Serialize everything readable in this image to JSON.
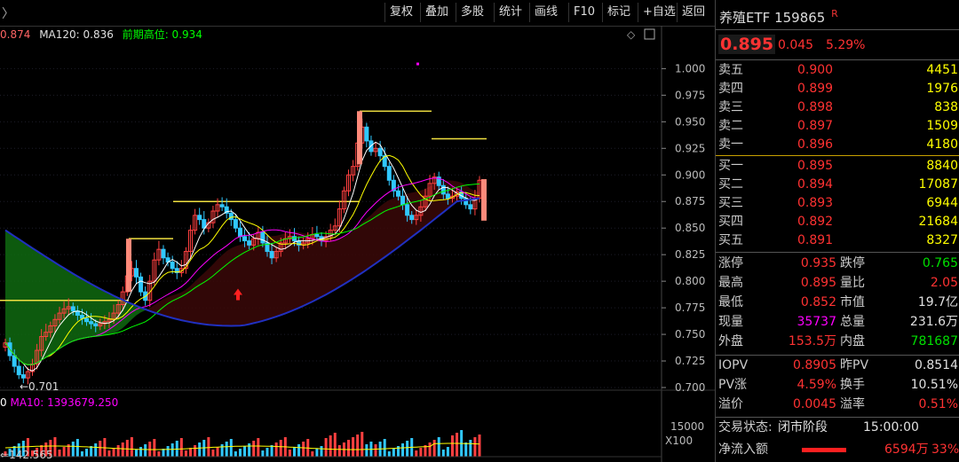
{
  "toolbar": {
    "back_arrow": "〉",
    "buttons": [
      "复权",
      "叠加",
      "多股",
      "统计",
      "画线",
      "F10",
      "标记",
      "+自选",
      "返回"
    ]
  },
  "legend": {
    "items": [
      {
        "text": "0.874",
        "color": "#ff6464"
      },
      {
        "text": "MA120: 0.836",
        "color": "#e0e0e0"
      },
      {
        "text": "前期高位: 0.934",
        "color": "#00ff00"
      }
    ]
  },
  "chart_data": {
    "type": "candlestick",
    "y_ticks": [
      "1.000",
      "0.975",
      "0.950",
      "0.925",
      "0.900",
      "0.875",
      "0.850",
      "0.825",
      "0.800",
      "0.775",
      "0.750",
      "0.725",
      "0.700"
    ],
    "ylim": [
      0.69,
      1.012
    ],
    "annotations": {
      "low_label": "0.701"
    },
    "volume_ticks": [
      "15000",
      "X100"
    ],
    "closes": [
      0.742,
      0.73,
      0.72,
      0.712,
      0.709,
      0.715,
      0.722,
      0.735,
      0.748,
      0.752,
      0.758,
      0.764,
      0.77,
      0.774,
      0.776,
      0.772,
      0.768,
      0.765,
      0.762,
      0.76,
      0.758,
      0.76,
      0.762,
      0.764,
      0.77,
      0.778,
      0.79,
      0.805,
      0.812,
      0.804,
      0.79,
      0.782,
      0.8,
      0.82,
      0.83,
      0.822,
      0.818,
      0.812,
      0.808,
      0.812,
      0.828,
      0.848,
      0.862,
      0.858,
      0.85,
      0.855,
      0.866,
      0.872,
      0.87,
      0.864,
      0.858,
      0.85,
      0.842,
      0.838,
      0.834,
      0.84,
      0.846,
      0.836,
      0.828,
      0.822,
      0.828,
      0.836,
      0.84,
      0.842,
      0.838,
      0.834,
      0.836,
      0.84,
      0.844,
      0.842,
      0.838,
      0.842,
      0.848,
      0.852,
      0.868,
      0.885,
      0.9,
      0.908,
      0.93,
      0.945,
      0.932,
      0.922,
      0.925,
      0.918,
      0.908,
      0.895,
      0.885,
      0.88,
      0.872,
      0.862,
      0.858,
      0.862,
      0.87,
      0.88,
      0.892,
      0.898,
      0.89,
      0.882,
      0.878,
      0.88,
      0.884,
      0.878,
      0.872,
      0.868,
      0.878,
      0.895
    ]
  },
  "volume_legend": {
    "items": [
      {
        "text": "0",
        "color": "#ffffff"
      },
      {
        "text": "MA10: 1393679.250",
        "color": "#ff00ff"
      }
    ]
  },
  "bottom_text": "142.565",
  "quote": {
    "name": "养殖ETF",
    "code": "159865",
    "badge": "R",
    "price": "0.895",
    "change": "0.045",
    "change_pct": "5.29%",
    "asks": [
      {
        "label": "卖五",
        "price": "0.900",
        "vol": "4451"
      },
      {
        "label": "卖四",
        "price": "0.899",
        "vol": "1976"
      },
      {
        "label": "卖三",
        "price": "0.898",
        "vol": "838"
      },
      {
        "label": "卖二",
        "price": "0.897",
        "vol": "1509"
      },
      {
        "label": "卖一",
        "price": "0.896",
        "vol": "4180"
      }
    ],
    "bids": [
      {
        "label": "买一",
        "price": "0.895",
        "vol": "8840"
      },
      {
        "label": "买二",
        "price": "0.894",
        "vol": "17087"
      },
      {
        "label": "买三",
        "price": "0.893",
        "vol": "6944"
      },
      {
        "label": "买四",
        "price": "0.892",
        "vol": "21684"
      },
      {
        "label": "买五",
        "price": "0.891",
        "vol": "8327"
      }
    ],
    "stats": [
      {
        "l1": "涨停",
        "v1": "0.935",
        "c1": "red",
        "l2": "跌停",
        "v2": "0.765",
        "c2": "green"
      },
      {
        "l1": "最高",
        "v1": "0.895",
        "c1": "red",
        "l2": "量比",
        "v2": "2.05",
        "c2": "red"
      },
      {
        "l1": "最低",
        "v1": "0.852",
        "c1": "red",
        "l2": "市值",
        "v2": "19.7亿",
        "c2": "white"
      },
      {
        "l1": "现量",
        "v1": "35737",
        "c1": "magenta",
        "l2": "总量",
        "v2": "231.6万",
        "c2": "white"
      },
      {
        "l1": "外盘",
        "v1": "153.5万",
        "c1": "red",
        "l2": "内盘",
        "v2": "781687",
        "c2": "green"
      }
    ],
    "stats2": [
      {
        "l1": "IOPV",
        "v1": "0.8905",
        "c1": "red",
        "l2": "昨PV",
        "v2": "0.8514",
        "c2": "white"
      },
      {
        "l1": "PV涨",
        "v1": "4.59%",
        "c1": "red",
        "l2": "换手",
        "v2": "10.51%",
        "c2": "white"
      },
      {
        "l1": "溢价",
        "v1": "0.0045",
        "c1": "red",
        "l2": "溢率",
        "v2": "0.51%",
        "c2": "red"
      }
    ],
    "trade_status_label": "交易状态:",
    "trade_status": "闭市阶段",
    "trade_time": "15:00:00",
    "net_inflow_label": "净流入额",
    "net_inflow": "6594万",
    "net_inflow_pct": "33%"
  }
}
